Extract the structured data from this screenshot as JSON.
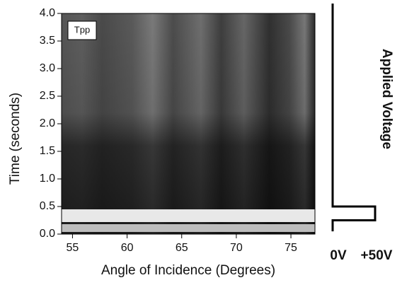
{
  "chart_data": [
    {
      "type": "heatmap",
      "annotation": "Tpp",
      "x_label": "Angle of Incidence (Degrees)",
      "y_label": "Time (seconds)",
      "xlim": [
        54,
        77.2
      ],
      "ylim": [
        0,
        4.0
      ],
      "xticks": [
        55,
        60,
        65,
        70,
        75
      ],
      "yticks": [
        {
          "value": 0,
          "label": "0.0"
        },
        0.5,
        {
          "value": 1,
          "label": "1.0"
        },
        1.5,
        {
          "value": 2,
          "label": "2.0"
        },
        2.5,
        {
          "value": 3,
          "label": "3.0"
        },
        3.5,
        {
          "value": 4,
          "label": "4.0"
        }
      ]
    },
    {
      "type": "line",
      "y_label": "Applied Voltage",
      "xlim": [
        0,
        50
      ],
      "ylim": [
        0,
        4.0
      ],
      "xticks": [
        {
          "value": 0,
          "label": "0V"
        },
        {
          "value": 50,
          "label": "+50V"
        }
      ],
      "x": [
        0,
        0,
        50,
        50,
        0,
        0
      ],
      "y": [
        0.05,
        0.25,
        0.25,
        0.5,
        0.5,
        4.18
      ],
      "color": "#000000"
    }
  ]
}
